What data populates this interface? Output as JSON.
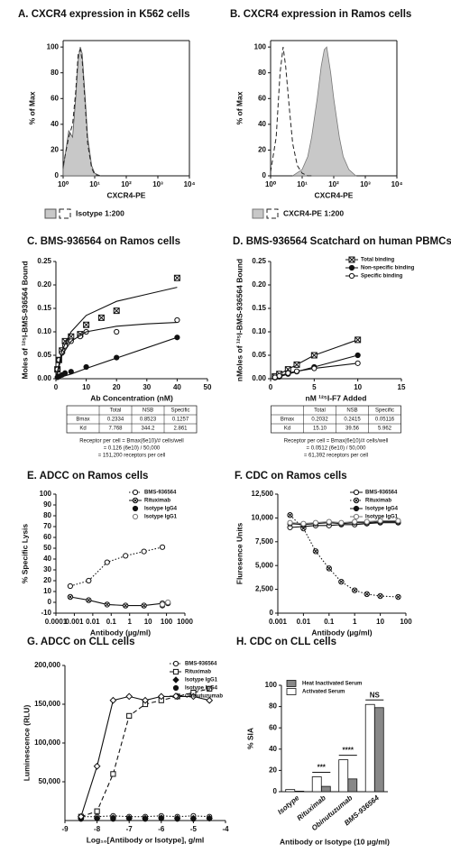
{
  "chart_data": [
    {
      "type": "flow",
      "title": "A. CXCR4 expression in K562 cells",
      "x_label": "CXCR4-PE",
      "y_label": "% of Max",
      "xlog": true,
      "xlim": [
        1,
        10000
      ],
      "xticks": [
        {
          "value": 1,
          "label": "10⁰"
        },
        {
          "value": 10,
          "label": "10¹"
        },
        {
          "value": 100,
          "label": "10²"
        },
        {
          "value": 1000,
          "label": "10³"
        },
        {
          "value": 10000,
          "label": "10⁴"
        }
      ],
      "ylim": [
        0,
        105
      ],
      "yticks": [
        0,
        20,
        40,
        60,
        80,
        100
      ],
      "legend": "bottom",
      "series": [
        {
          "color": "#555555",
          "fill": "#c8c8c8",
          "x": [
            1,
            1.5,
            2,
            2.5,
            3,
            3.5,
            4,
            5,
            6,
            8,
            10,
            15
          ],
          "values": [
            5,
            35,
            30,
            60,
            90,
            100,
            95,
            60,
            30,
            8,
            2,
            0
          ]
        },
        {
          "name": "Isotype 1:200",
          "color": "#222222",
          "line": "dashed",
          "x": [
            1,
            1.5,
            2,
            2.5,
            3,
            3.5,
            4,
            5,
            6,
            8,
            10,
            15
          ],
          "values": [
            8,
            30,
            40,
            65,
            95,
            98,
            90,
            55,
            25,
            6,
            1,
            0
          ]
        }
      ]
    },
    {
      "type": "flow",
      "title": "B. CXCR4 expression in Ramos cells",
      "x_label": "CXCR4-PE",
      "y_label": "% of Max",
      "xlog": true,
      "xlim": [
        1,
        10000
      ],
      "xticks": [
        {
          "value": 1,
          "label": "10⁰"
        },
        {
          "value": 10,
          "label": "10¹"
        },
        {
          "value": 100,
          "label": "10²"
        },
        {
          "value": 1000,
          "label": "10³"
        },
        {
          "value": 10000,
          "label": "10⁴"
        }
      ],
      "ylim": [
        0,
        105
      ],
      "yticks": [
        0,
        20,
        40,
        60,
        80,
        100
      ],
      "legend": "bottom",
      "series": [
        {
          "name": "CXCR4-PE 1:200",
          "color": "#777777",
          "fill": "#c8c8c8",
          "x": [
            5,
            10,
            15,
            20,
            30,
            40,
            50,
            60,
            80,
            100,
            150,
            200,
            300,
            500
          ],
          "values": [
            0,
            5,
            15,
            30,
            60,
            85,
            98,
            100,
            80,
            60,
            30,
            15,
            5,
            0
          ]
        },
        {
          "color": "#222222",
          "line": "dashed",
          "x": [
            1,
            1.5,
            2,
            2.5,
            3,
            4,
            5,
            7,
            10,
            15,
            20
          ],
          "values": [
            3,
            30,
            80,
            100,
            85,
            50,
            25,
            8,
            2,
            0,
            0
          ]
        }
      ]
    },
    {
      "type": "scatter",
      "title": "C. BMS-936564 on Ramos cells",
      "x_label": "Ab Concentration (nM)",
      "y_label": "Moles of ¹²⁵I-BMS-936564 Bound",
      "xlim": [
        0,
        50
      ],
      "xticks": [
        0,
        10,
        20,
        30,
        40,
        50
      ],
      "ylim": [
        0,
        0.25
      ],
      "yticks": [
        {
          "value": 0,
          "label": "0.00"
        },
        0.05,
        {
          "value": 0.1,
          "label": "0.10"
        },
        0.15,
        {
          "value": 0.2,
          "label": "0.20"
        },
        0.25
      ],
      "series": [
        {
          "color": "#111111",
          "marker": "square-x",
          "x": [
            0.5,
            1,
            2,
            3,
            5,
            8,
            10,
            15,
            20,
            40
          ],
          "values": [
            0.02,
            0.04,
            0.06,
            0.08,
            0.09,
            0.095,
            0.115,
            0.13,
            0.145,
            0.215
          ]
        },
        {
          "color": "#111111",
          "marker": "circle",
          "x": [
            0.5,
            1,
            2,
            3,
            5,
            10,
            20,
            40
          ],
          "values": [
            0.003,
            0.005,
            0.008,
            0.012,
            0.015,
            0.025,
            0.045,
            0.088
          ]
        },
        {
          "color": "#111111",
          "marker": "circle-open",
          "x": [
            0.5,
            1,
            2,
            3,
            5,
            8,
            10,
            20,
            40
          ],
          "values": [
            0.02,
            0.04,
            0.055,
            0.07,
            0.08,
            0.09,
            0.1,
            0.1,
            0.125
          ]
        },
        {
          "color": "#111111",
          "line": "solid",
          "x": [
            0,
            2,
            5,
            10,
            20,
            30,
            40
          ],
          "values": [
            0,
            0.06,
            0.1,
            0.135,
            0.165,
            0.18,
            0.195
          ]
        },
        {
          "color": "#111111",
          "line": "solid",
          "x": [
            0,
            2,
            5,
            10,
            20,
            30,
            40
          ],
          "values": [
            0,
            0.05,
            0.08,
            0.1,
            0.112,
            0.117,
            0.12
          ]
        },
        {
          "color": "#111111",
          "line": "solid",
          "x": [
            0,
            2,
            5,
            10,
            20,
            30,
            40
          ],
          "values": [
            0,
            0.004,
            0.01,
            0.022,
            0.044,
            0.066,
            0.088
          ]
        }
      ],
      "table": {
        "columns": [
          "Total",
          "NSB",
          "Specific"
        ],
        "rows": [
          {
            "label": "Bmax",
            "cells": [
              "0.2334",
              "0.8523",
              "0.1257"
            ]
          },
          {
            "label": "Kd",
            "cells": [
              "7.768",
              "344.2",
              "2.861"
            ]
          }
        ]
      },
      "notes": [
        "Receptor per cell = Bmax(6e10)/# cells/well",
        "= 0.126 (6e10) / 50,000",
        "= 151,200 receptors per cell"
      ]
    },
    {
      "type": "scatter",
      "title": "D. BMS-936564 Scatchard on human PBMCs",
      "x_label": "nM ¹²⁵I-F7 Added",
      "y_label": "nMoles of ¹²⁵I-BMS-936564 Bound",
      "xlim": [
        0,
        15
      ],
      "xticks": [
        0,
        5,
        10,
        15
      ],
      "ylim": [
        0,
        0.25
      ],
      "yticks": [
        {
          "value": 0,
          "label": "0.00"
        },
        0.05,
        {
          "value": 0.1,
          "label": "0.10"
        },
        0.15,
        {
          "value": 0.2,
          "label": "0.20"
        },
        0.25
      ],
      "legend": "top-right",
      "series": [
        {
          "name": "Total binding",
          "color": "#111111",
          "marker": "square-x",
          "line": "solid",
          "x": [
            0.5,
            1,
            2,
            3,
            5,
            10
          ],
          "values": [
            0.005,
            0.01,
            0.02,
            0.03,
            0.05,
            0.083
          ]
        },
        {
          "name": "Non-specific binding",
          "color": "#111111",
          "marker": "circle",
          "line": "solid",
          "x": [
            0.5,
            1,
            2,
            3,
            5,
            10
          ],
          "values": [
            0.002,
            0.004,
            0.01,
            0.015,
            0.025,
            0.05
          ]
        },
        {
          "name": "Specific binding",
          "color": "#111111",
          "marker": "circle-open",
          "line": "solid",
          "x": [
            0.5,
            1,
            2,
            3,
            5,
            10
          ],
          "values": [
            0.003,
            0.006,
            0.012,
            0.016,
            0.022,
            0.033
          ]
        }
      ],
      "table": {
        "columns": [
          "Total",
          "NSB",
          "Specific"
        ],
        "rows": [
          {
            "label": "Bmax",
            "cells": [
              "0.2032",
              "0.2415",
              "0.05116"
            ]
          },
          {
            "label": "Kd",
            "cells": [
              "15.10",
              "39.56",
              "5.962"
            ]
          }
        ]
      },
      "notes": [
        "Receptor per cell = Bmax(6e10)/# cells/well",
        "= 0.0512 (6e10) / 50,000",
        "= 61,392 receptors per cell"
      ]
    },
    {
      "type": "scatter",
      "title": "E. ADCC on Ramos cells",
      "x_label": "Antibody (µg/ml)",
      "y_label": "% Specific Lysis",
      "xlog": true,
      "xlim": [
        0.0001,
        1000
      ],
      "xticks": [
        0.0001,
        0.001,
        0.01,
        0.1,
        1,
        10,
        100,
        1000
      ],
      "ylim": [
        -10,
        100
      ],
      "yticks": [
        -10,
        0,
        10,
        20,
        30,
        40,
        50,
        60,
        70,
        80,
        90,
        100
      ],
      "legend": "top-right",
      "series": [
        {
          "name": "BMS-936564",
          "color": "#111111",
          "marker": "circle-open",
          "line": "dotted",
          "x": [
            0.0006,
            0.006,
            0.06,
            0.6,
            6,
            60
          ],
          "values": [
            15,
            20,
            37,
            43,
            47,
            51
          ]
        },
        {
          "name": "Rituximab",
          "color": "#111111",
          "marker": "circle-x",
          "line": "solid",
          "x": [
            0.0006,
            0.006,
            0.06,
            0.6,
            6,
            60
          ],
          "values": [
            5,
            2,
            -2,
            -3,
            -3,
            -1
          ]
        },
        {
          "name": "Isotype IgG4",
          "color": "#111111",
          "marker": "circle",
          "x": [
            60,
            120
          ],
          "values": [
            -3,
            -1
          ]
        },
        {
          "name": "Isotype IgG1",
          "color": "#777777",
          "marker": "circle-open",
          "x": [
            60,
            120
          ],
          "values": [
            -2,
            0
          ]
        }
      ]
    },
    {
      "type": "scatter",
      "title": "F. CDC on Ramos cells",
      "x_label": "Antibody (µg/ml)",
      "y_label": "Fluresence Units",
      "xlog": true,
      "xlim": [
        0.001,
        100
      ],
      "xticks": [
        0.001,
        0.01,
        0.1,
        1,
        10,
        100
      ],
      "ylim": [
        0,
        12500
      ],
      "yticks": [
        0,
        {
          "value": 2500,
          "label": "2,500"
        },
        {
          "value": 5000,
          "label": "5,000"
        },
        {
          "value": 7500,
          "label": "7,500"
        },
        {
          "value": 10000,
          "label": "10,000"
        },
        {
          "value": 12500,
          "label": "12,500"
        }
      ],
      "legend": "top-right",
      "series": [
        {
          "name": "BMS-936564",
          "color": "#111111",
          "marker": "circle-open",
          "line": "solid",
          "x": [
            0.003,
            0.01,
            0.03,
            0.1,
            0.3,
            1,
            3,
            10,
            50
          ],
          "values": [
            9000,
            9100,
            9200,
            9200,
            9300,
            9300,
            9400,
            9500,
            9500
          ]
        },
        {
          "name": "Rituximab",
          "color": "#111111",
          "marker": "circle-x",
          "line": "dotted",
          "x": [
            0.003,
            0.01,
            0.03,
            0.1,
            0.3,
            1,
            3,
            10,
            50
          ],
          "values": [
            10300,
            8900,
            6500,
            4700,
            3300,
            2400,
            2000,
            1800,
            1700
          ]
        },
        {
          "name": "Isotype IgG4",
          "color": "#111111",
          "marker": "circle",
          "line": "solid",
          "x": [
            0.003,
            0.01,
            0.03,
            0.1,
            0.3,
            1,
            3,
            10,
            50
          ],
          "values": [
            9400,
            9300,
            9400,
            9500,
            9400,
            9500,
            9500,
            9600,
            9600
          ]
        },
        {
          "name": "Isotype IgG1",
          "color": "#777777",
          "marker": "circle-open",
          "line": "solid",
          "x": [
            0.003,
            0.01,
            0.03,
            0.1,
            0.3,
            1,
            3,
            10,
            50
          ],
          "values": [
            9500,
            9400,
            9500,
            9600,
            9500,
            9600,
            9600,
            9700,
            9700
          ]
        }
      ]
    },
    {
      "type": "scatter",
      "title": "G. ADCC on CLL cells",
      "x_label": "Log₁₀[Antibody or Isotype], g/ml",
      "y_label": "Luminescence (RLU)",
      "xlim": [
        -9,
        -4
      ],
      "xticks": [
        -9,
        -8,
        -7,
        -6,
        -5,
        -4
      ],
      "ylim": [
        0,
        200000
      ],
      "yticks": [
        {
          "value": 50000,
          "label": "50,000"
        },
        {
          "value": 100000,
          "label": "100,000"
        },
        {
          "value": 150000,
          "label": "150,000"
        },
        {
          "value": 200000,
          "label": "200,000"
        }
      ],
      "legend": "top-right",
      "series": [
        {
          "name": "BMS-936564",
          "color": "#111111",
          "marker": "circle-open",
          "line": "dotted",
          "x": [
            -8.5,
            -8,
            -7.5,
            -7,
            -6.5,
            -6,
            -5.5,
            -5,
            -4.5
          ],
          "values": [
            5000,
            5000,
            6000,
            5000,
            5000,
            6000,
            5000,
            6000,
            5000
          ]
        },
        {
          "name": "Rituximab",
          "color": "#111111",
          "marker": "square-open",
          "line": "dashed",
          "x": [
            -8.5,
            -8,
            -7.5,
            -7,
            -6.5,
            -6,
            -5.5,
            -5,
            -4.5
          ],
          "values": [
            5000,
            12000,
            60000,
            135000,
            150000,
            155000,
            160000,
            165000,
            170000
          ]
        },
        {
          "name": "Isotype IgG1",
          "color": "#111111",
          "marker": "diamond",
          "x": [
            -8.5,
            -8,
            -7.5,
            -7,
            -6.5,
            -6,
            -5.5,
            -5,
            -4.5
          ],
          "values": [
            3000,
            3000,
            3500,
            3000,
            3000,
            3500,
            3000,
            3000,
            3000
          ]
        },
        {
          "name": "Isotype IgG4",
          "color": "#111111",
          "marker": "circle",
          "x": [
            -8.5,
            -8,
            -7.5,
            -7,
            -6.5,
            -6,
            -5.5,
            -5,
            -4.5
          ],
          "values": [
            2000,
            2500,
            2000,
            2500,
            2000,
            2500,
            2000,
            2000,
            2500
          ]
        },
        {
          "name": "Obinutuzumab",
          "color": "#111111",
          "marker": "diamond-open",
          "line": "solid",
          "x": [
            -8.5,
            -8,
            -7.5,
            -7,
            -6.5,
            -6,
            -5.5,
            -5,
            -4.5
          ],
          "values": [
            5000,
            70000,
            155000,
            160000,
            155000,
            160000,
            160000,
            160000,
            155000
          ]
        }
      ]
    },
    {
      "type": "bar",
      "title": "H. CDC on CLL cells",
      "x_label": "Antibody or Isotype (10 µg/ml)",
      "y_label": "% SIA",
      "categories": [
        "Isotype",
        "Rituximab",
        "Obinutuzumab",
        "BMS-936564"
      ],
      "ylim": [
        0,
        100
      ],
      "yticks": [
        0,
        20,
        40,
        60,
        80,
        100
      ],
      "legend": "top-left",
      "series": [
        {
          "name": "Heat Inactivated Serum",
          "color": "#888888",
          "values": [
            0.5,
            5,
            12,
            79
          ]
        },
        {
          "name": "Activated Serum",
          "color": "#ffffff",
          "values": [
            2,
            14,
            30,
            82
          ]
        }
      ],
      "annotations": [
        {
          "text": "***",
          "category": "Rituximab"
        },
        {
          "text": "****",
          "category": "Obinutuzumab"
        },
        {
          "text": "NS",
          "category": "BMS-936564"
        }
      ]
    }
  ]
}
